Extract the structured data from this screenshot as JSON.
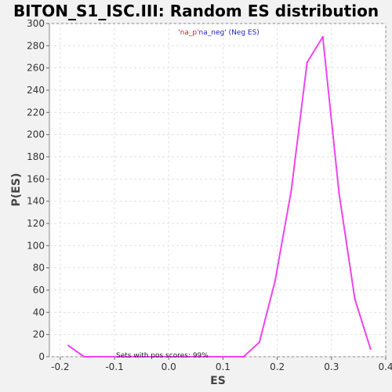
{
  "chart_data": {
    "type": "line",
    "title": "BITON_S1_ISC.III: Random ES distribution",
    "xlabel": "ES",
    "ylabel": "P(ES)",
    "xlim": [
      -0.22,
      0.4
    ],
    "ylim": [
      0,
      300
    ],
    "x_ticks": [
      "-0.2",
      "-0.1",
      "0.0",
      "0.1",
      "0.2",
      "0.3",
      "0.4"
    ],
    "y_ticks": [
      "0",
      "20",
      "40",
      "60",
      "80",
      "100",
      "120",
      "140",
      "160",
      "180",
      "200",
      "220",
      "240",
      "260",
      "280",
      "300"
    ],
    "grid": true,
    "legend": {
      "placement": "top-center",
      "pos_label": "'na_p'",
      "neg_label": "na_neg' (Neg ES)",
      "pos_color": "#cc2222",
      "neg_color": "#2222cc"
    },
    "annotation": "Sets with pos scores: 99%",
    "series": [
      {
        "color": "#ee44ee",
        "x": [
          -0.185,
          -0.156,
          -0.127,
          -0.098,
          -0.069,
          -0.04,
          -0.011,
          0.018,
          0.047,
          0.076,
          0.105,
          0.138,
          0.167,
          0.196,
          0.226,
          0.255,
          0.284,
          0.314,
          0.343,
          0.372
        ],
        "y": [
          10,
          0,
          0,
          0,
          0,
          0,
          0,
          0,
          0,
          0,
          0,
          0,
          13,
          68,
          150,
          265,
          288,
          147,
          52,
          7
        ]
      }
    ]
  }
}
